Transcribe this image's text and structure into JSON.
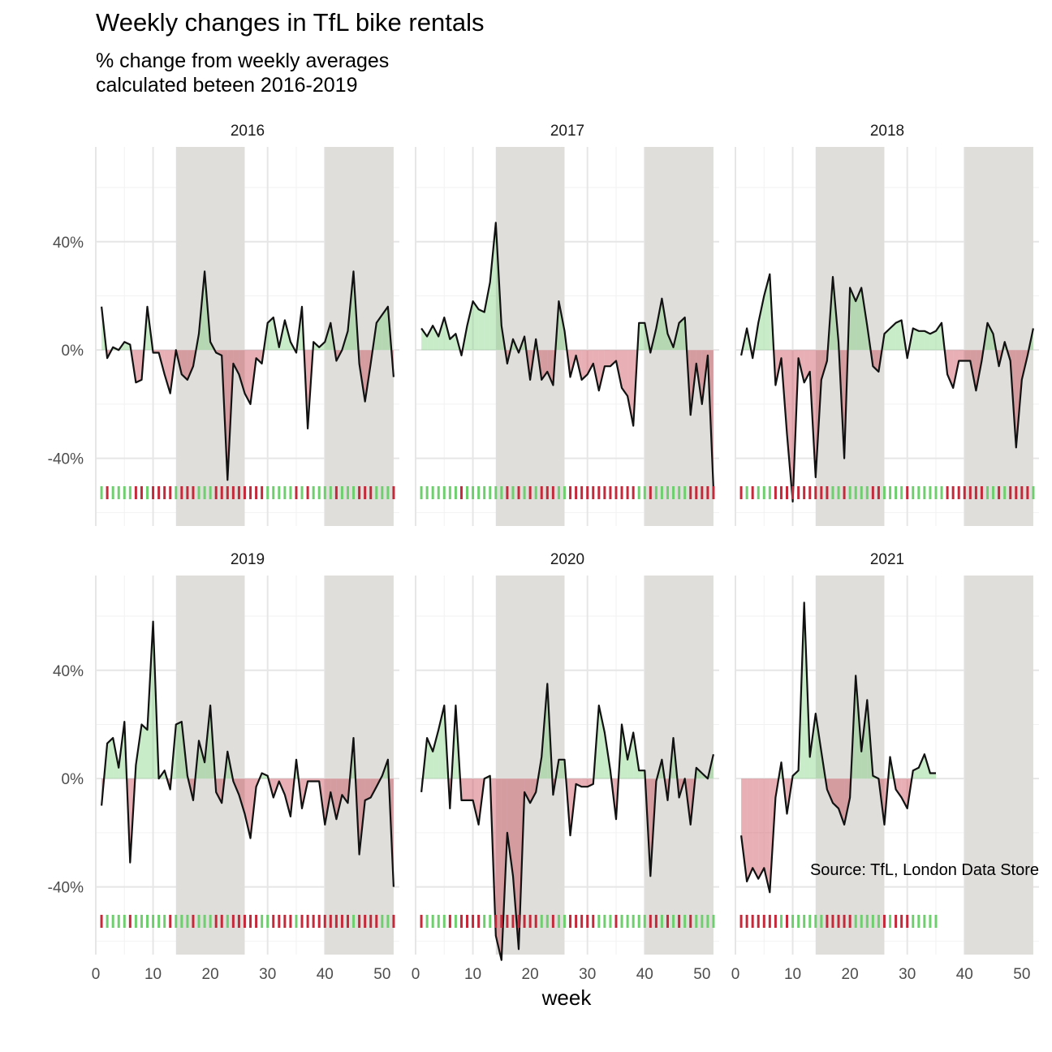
{
  "title": "Weekly changes in TfL bike rentals",
  "subtitle": [
    "% change from weekly averages",
    "calculated beteen 2016-2019"
  ],
  "caption": "Source: TfL, London Data Store",
  "colors": {
    "positive_fill": "#7ccf7c",
    "negative_fill": "#c8404e",
    "rug_positive": "#6fcf6f",
    "rug_negative": "#c42a3a",
    "shade": "#dfdedb",
    "line": "#111111",
    "grid_major": "#e6e6e6",
    "grid_minor": "#f2f2f2"
  },
  "chart_data": {
    "type": "area",
    "title": "Weekly changes in TfL bike rentals",
    "xlabel": "week",
    "ylabel": "",
    "x_ticks": [
      0,
      10,
      20,
      30,
      40,
      50
    ],
    "y_ticks": [
      -40,
      0,
      40
    ],
    "y_tick_labels": [
      "-40%",
      "0%",
      "40%"
    ],
    "xlim": [
      0,
      53
    ],
    "ylim": [
      -65,
      75
    ],
    "shaded_week_ranges": [
      [
        14,
        26
      ],
      [
        40,
        52
      ]
    ],
    "grid": true,
    "series": [
      {
        "name": "2016",
        "x": [
          1,
          2,
          3,
          4,
          5,
          6,
          7,
          8,
          9,
          10,
          11,
          12,
          13,
          14,
          15,
          16,
          17,
          18,
          19,
          20,
          21,
          22,
          23,
          24,
          25,
          26,
          27,
          28,
          29,
          30,
          31,
          32,
          33,
          34,
          35,
          36,
          37,
          38,
          39,
          40,
          41,
          42,
          43,
          44,
          45,
          46,
          47,
          48,
          49,
          50,
          51,
          52
        ],
        "values": [
          16,
          -3,
          1,
          0,
          3,
          2,
          -12,
          -11,
          16,
          -1,
          -1,
          -9,
          -16,
          0,
          -9,
          -11,
          -6,
          6,
          29,
          3,
          -1,
          -2,
          -48,
          -5,
          -9,
          -16,
          -20,
          -3,
          -5,
          10,
          12,
          1,
          11,
          3,
          -1,
          16,
          -29,
          3,
          1,
          3,
          10,
          -4,
          0,
          7,
          29,
          -5,
          -19,
          -5,
          10,
          13,
          16,
          -10
        ]
      },
      {
        "name": "2017",
        "x": [
          1,
          2,
          3,
          4,
          5,
          6,
          7,
          8,
          9,
          10,
          11,
          12,
          13,
          14,
          15,
          16,
          17,
          18,
          19,
          20,
          21,
          22,
          23,
          24,
          25,
          26,
          27,
          28,
          29,
          30,
          31,
          32,
          33,
          34,
          35,
          36,
          37,
          38,
          39,
          40,
          41,
          42,
          43,
          44,
          45,
          46,
          47,
          48,
          49,
          50,
          51,
          52
        ],
        "values": [
          8,
          5,
          9,
          5,
          12,
          4,
          6,
          -2,
          9,
          18,
          15,
          14,
          25,
          47,
          9,
          -5,
          4,
          -1,
          5,
          -11,
          4,
          -11,
          -8,
          -13,
          18,
          7,
          -10,
          -2,
          -11,
          -9,
          -5,
          -15,
          -6,
          -6,
          -4,
          -14,
          -17,
          -28,
          10,
          10,
          -1,
          8,
          19,
          6,
          1,
          10,
          12,
          -24,
          -5,
          -20,
          -2,
          -51
        ]
      },
      {
        "name": "2018",
        "x": [
          1,
          2,
          3,
          4,
          5,
          6,
          7,
          8,
          9,
          10,
          11,
          12,
          13,
          14,
          15,
          16,
          17,
          18,
          19,
          20,
          21,
          22,
          23,
          24,
          25,
          26,
          27,
          28,
          29,
          30,
          31,
          32,
          33,
          34,
          35,
          36,
          37,
          38,
          39,
          40,
          41,
          42,
          43,
          44,
          45,
          46,
          47,
          48,
          49,
          50,
          51,
          52
        ],
        "values": [
          -2,
          8,
          -3,
          10,
          20,
          28,
          -13,
          -3,
          -31,
          -56,
          -3,
          -12,
          -8,
          -47,
          -11,
          -4,
          27,
          3,
          -40,
          23,
          18,
          23,
          9,
          -6,
          -8,
          6,
          8,
          10,
          11,
          -3,
          8,
          7,
          7,
          6,
          7,
          10,
          -9,
          -14,
          -4,
          -4,
          -4,
          -15,
          -4,
          10,
          6,
          -6,
          3,
          -4,
          -36,
          -11,
          -2,
          8
        ]
      },
      {
        "name": "2019",
        "x": [
          1,
          2,
          3,
          4,
          5,
          6,
          7,
          8,
          9,
          10,
          11,
          12,
          13,
          14,
          15,
          16,
          17,
          18,
          19,
          20,
          21,
          22,
          23,
          24,
          25,
          26,
          27,
          28,
          29,
          30,
          31,
          32,
          33,
          34,
          35,
          36,
          37,
          38,
          39,
          40,
          41,
          42,
          43,
          44,
          45,
          46,
          47,
          48,
          49,
          50,
          51,
          52
        ],
        "values": [
          -10,
          13,
          15,
          4,
          21,
          -31,
          5,
          20,
          18,
          58,
          0,
          3,
          -4,
          20,
          21,
          1,
          -8,
          14,
          6,
          27,
          -5,
          -9,
          10,
          -1,
          -6,
          -13,
          -22,
          -3,
          2,
          1,
          -7,
          -1,
          -6,
          -14,
          7,
          -11,
          -1,
          -1,
          -1,
          -17,
          -5,
          -15,
          -6,
          -9,
          15,
          -28,
          -8,
          -7,
          -3,
          1,
          7,
          -40
        ]
      },
      {
        "name": "2020",
        "x": [
          1,
          2,
          3,
          4,
          5,
          6,
          7,
          8,
          9,
          10,
          11,
          12,
          13,
          14,
          15,
          16,
          17,
          18,
          19,
          20,
          21,
          22,
          23,
          24,
          25,
          26,
          27,
          28,
          29,
          30,
          31,
          32,
          33,
          34,
          35,
          36,
          37,
          38,
          39,
          40,
          41,
          42,
          43,
          44,
          45,
          46,
          47,
          48,
          49,
          50,
          51,
          52
        ],
        "values": [
          -5,
          15,
          10,
          18,
          27,
          -11,
          27,
          -8,
          -8,
          -8,
          -17,
          0,
          1,
          -58,
          -67,
          -20,
          -36,
          -63,
          -5,
          -9,
          -5,
          8,
          35,
          -6,
          7,
          7,
          -21,
          -2,
          -3,
          -3,
          -2,
          27,
          17,
          3,
          -15,
          20,
          7,
          17,
          3,
          3,
          -36,
          -1,
          7,
          -8,
          15,
          -7,
          0,
          -17,
          4,
          2,
          0,
          9
        ]
      },
      {
        "name": "2021",
        "x": [
          1,
          2,
          3,
          4,
          5,
          6,
          7,
          8,
          9,
          10,
          11,
          12,
          13,
          14,
          15,
          16,
          17,
          18,
          19,
          20,
          21,
          22,
          23,
          24,
          25,
          26,
          27,
          28,
          29,
          30,
          31,
          32,
          33,
          34,
          35
        ],
        "values": [
          -21,
          -38,
          -33,
          -37,
          -33,
          -42,
          -7,
          6,
          -13,
          1,
          3,
          65,
          8,
          24,
          10,
          -4,
          -9,
          -11,
          -17,
          -7,
          38,
          10,
          29,
          1,
          0,
          -17,
          8,
          -4,
          -7,
          -11,
          3,
          4,
          9,
          2,
          2
        ]
      }
    ]
  }
}
